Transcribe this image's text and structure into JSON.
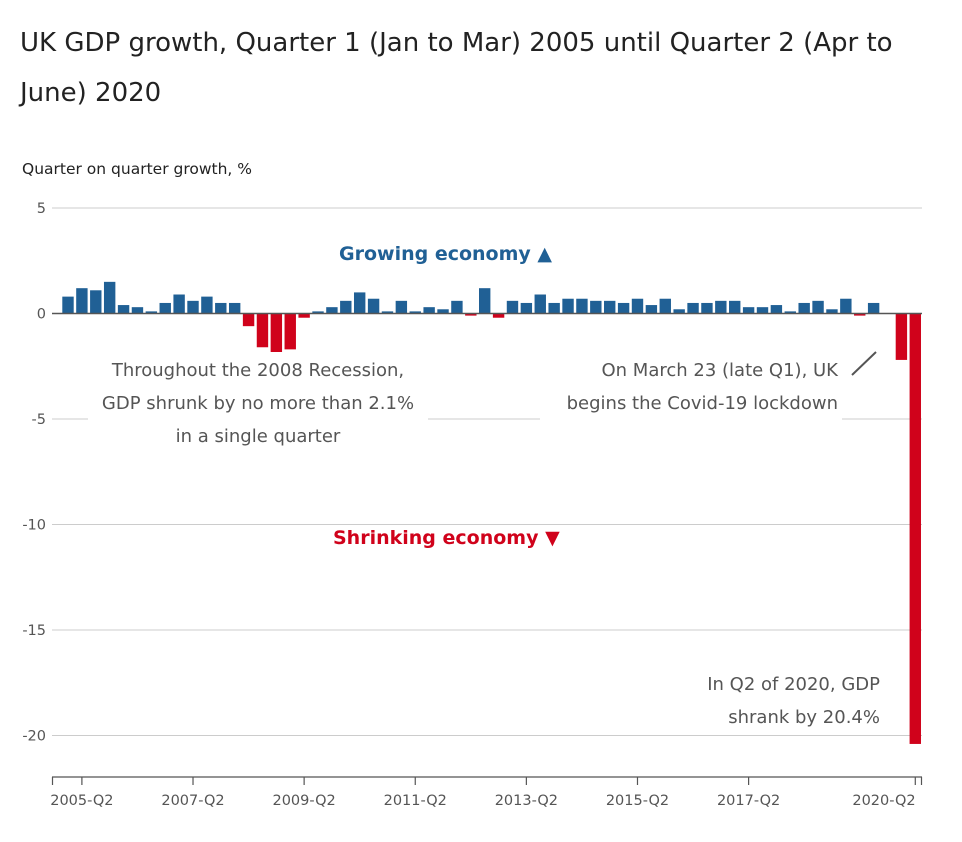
{
  "title": "UK GDP growth, Quarter 1 (Jan to Mar) 2005 until Quarter 2 (Apr to June) 2020",
  "colors": {
    "positive": "#206095",
    "negative": "#d0021b",
    "grid": "#cccccc",
    "axis": "#555555"
  },
  "chart_data": {
    "type": "bar",
    "title": "UK GDP growth, Quarter 1 (Jan to Mar) 2005 until Quarter 2 (Apr to June) 2020",
    "xlabel": "",
    "ylabel": "Quarter on quarter growth, %",
    "ylim": [
      -22,
      5
    ],
    "yticks": [
      5,
      0,
      -5,
      -10,
      -15,
      -20
    ],
    "x_tick_labels": [
      "2005-Q2",
      "2007-Q2",
      "2009-Q2",
      "2011-Q2",
      "2013-Q2",
      "2015-Q2",
      "2017-Q2",
      "2020-Q2"
    ],
    "x_tick_label_categories": [
      "2005-Q2",
      "2007-Q2",
      "2009-Q2",
      "2011-Q2",
      "2013-Q2",
      "2015-Q2",
      "2017-Q2",
      "2020-Q2"
    ],
    "categories": [
      "2005-Q1",
      "2005-Q2",
      "2005-Q3",
      "2005-Q4",
      "2006-Q1",
      "2006-Q2",
      "2006-Q3",
      "2006-Q4",
      "2007-Q1",
      "2007-Q2",
      "2007-Q3",
      "2007-Q4",
      "2008-Q1",
      "2008-Q2",
      "2008-Q3",
      "2008-Q4",
      "2009-Q1",
      "2009-Q2",
      "2009-Q3",
      "2009-Q4",
      "2010-Q1",
      "2010-Q2",
      "2010-Q3",
      "2010-Q4",
      "2011-Q1",
      "2011-Q2",
      "2011-Q3",
      "2011-Q4",
      "2012-Q1",
      "2012-Q2",
      "2012-Q3",
      "2012-Q4",
      "2013-Q1",
      "2013-Q2",
      "2013-Q3",
      "2013-Q4",
      "2014-Q1",
      "2014-Q2",
      "2014-Q3",
      "2014-Q4",
      "2015-Q1",
      "2015-Q2",
      "2015-Q3",
      "2015-Q4",
      "2016-Q1",
      "2016-Q2",
      "2016-Q3",
      "2016-Q4",
      "2017-Q1",
      "2017-Q2",
      "2017-Q3",
      "2017-Q4",
      "2018-Q1",
      "2018-Q2",
      "2018-Q3",
      "2018-Q4",
      "2019-Q1",
      "2019-Q2",
      "2019-Q3",
      "2019-Q4",
      "2020-Q1",
      "2020-Q2"
    ],
    "values": [
      0.8,
      1.2,
      1.1,
      1.5,
      0.4,
      0.3,
      0.1,
      0.5,
      0.9,
      0.6,
      0.8,
      0.5,
      0.5,
      -0.6,
      -1.6,
      -2.0,
      -1.7,
      -0.2,
      0.1,
      0.3,
      0.6,
      1.0,
      0.7,
      0.1,
      0.6,
      0.1,
      0.3,
      0.2,
      0.6,
      -0.1,
      1.2,
      -0.2,
      0.6,
      0.5,
      0.9,
      0.5,
      0.7,
      0.7,
      0.6,
      0.6,
      0.5,
      0.7,
      0.4,
      0.7,
      0.2,
      0.5,
      0.5,
      0.6,
      0.6,
      0.3,
      0.3,
      0.4,
      0.1,
      0.5,
      0.6,
      0.2,
      0.7,
      -0.1,
      0.5,
      0.0,
      -2.2,
      -20.4
    ],
    "labels": {
      "growing": "Growing economy ▲",
      "shrinking": "Shrinking economy ▼"
    },
    "annotations": {
      "recession": [
        "Throughout the 2008 Recession,",
        "GDP shrunk by no more than 2.1%",
        "in a single quarter"
      ],
      "lockdown": [
        "On March 23 (late Q1), UK",
        "begins the Covid-19 lockdown"
      ],
      "q2_2020": [
        "In Q2 of 2020, GDP",
        "shrank by 20.4%"
      ]
    }
  }
}
